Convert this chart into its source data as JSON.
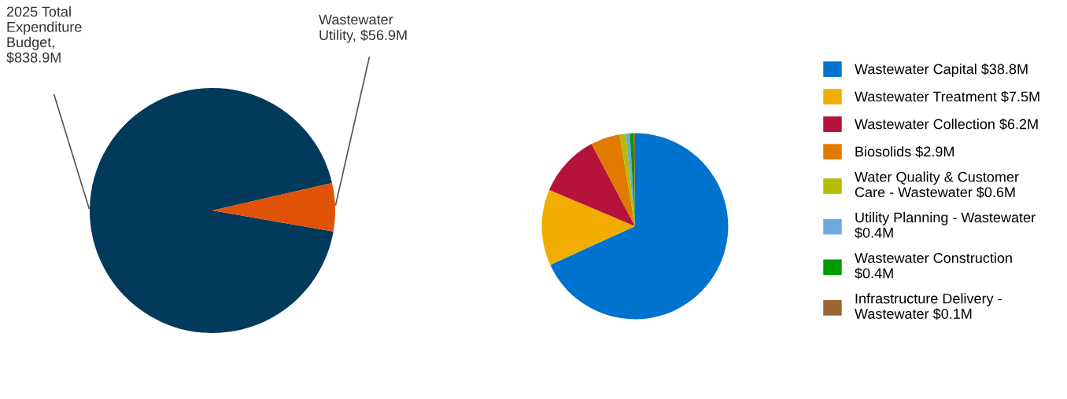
{
  "chart_data": [
    {
      "type": "pie",
      "categories": [
        "2025 Total\nExpenditure\nBudget,\n$838.9M",
        "Wastewater\nUtility, $56.9M"
      ],
      "values": [
        838.9,
        56.9
      ],
      "colors": [
        "#023a5c",
        "#e05206"
      ],
      "legend": false
    },
    {
      "type": "pie",
      "categories": [
        "Wastewater Capital $38.8M",
        "Wastewater Treatment $7.5M",
        "Wastewater Collection $6.2M",
        "Biosolids $2.9M",
        "Water Quality & Customer\nCare - Wastewater $0.6M",
        "Utility Planning - Wastewater\n$0.4M",
        "Wastewater Construction\n$0.4M",
        "Infrastructure Delivery -\nWastewater $0.1M"
      ],
      "values": [
        68.19,
        13.18,
        10.9,
        5.1,
        1.05,
        0.7,
        0.7,
        0.18
      ],
      "colors": [
        "#0073cf",
        "#f0ad00",
        "#b5133a",
        "#e07b00",
        "#b5bd00",
        "#6fa8dc",
        "#009b00",
        "#9b6633"
      ],
      "legend": "right"
    }
  ]
}
